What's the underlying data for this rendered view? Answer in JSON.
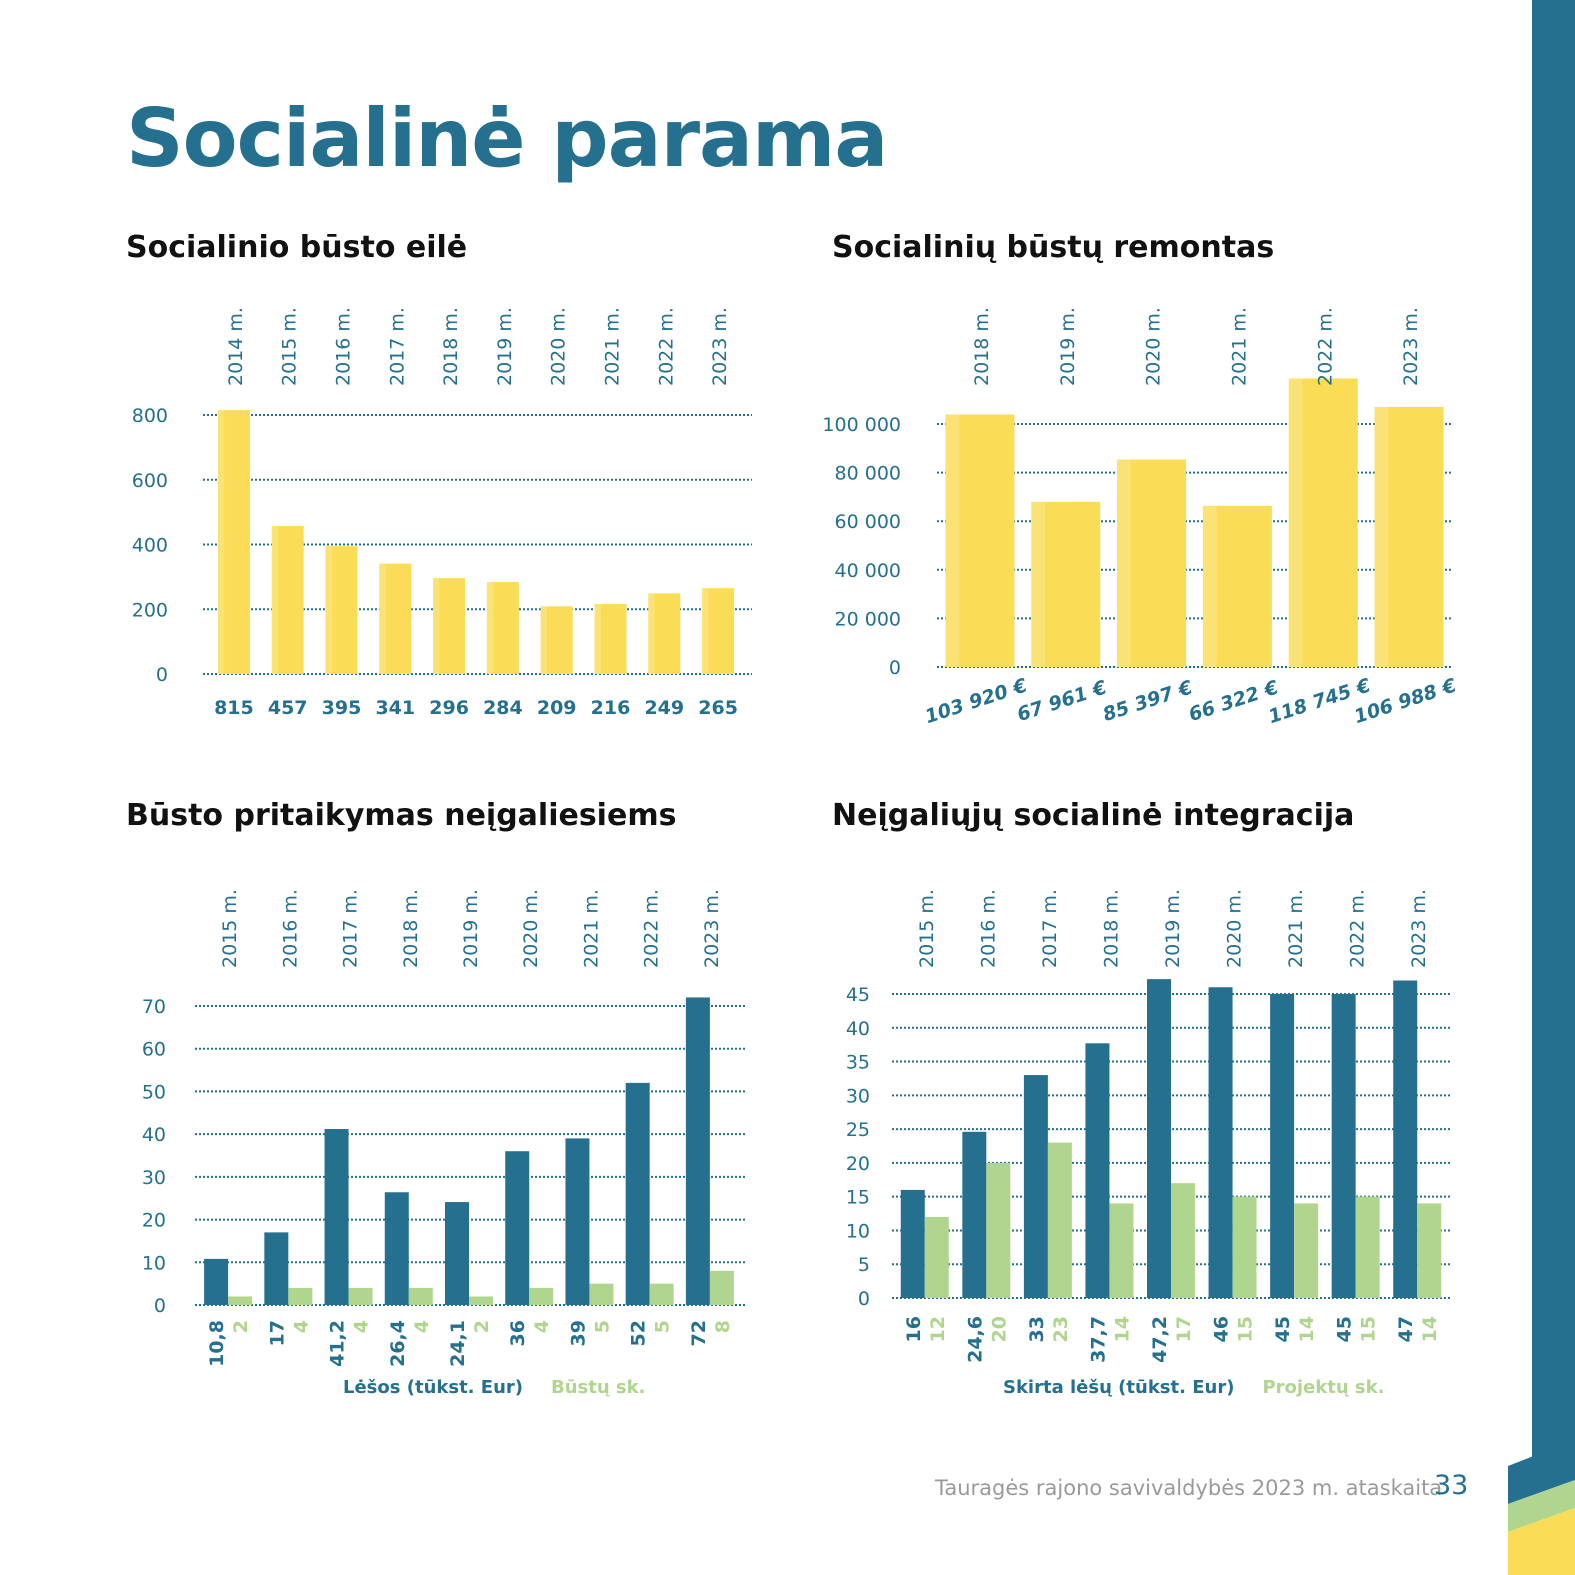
{
  "page": {
    "title": "Socialinė parama",
    "footer": "Tauragės rajono savivaldybės 2023 m. ataskaita",
    "page_number": "33"
  },
  "colors": {
    "blue": "#25708f",
    "yellow": "#fbdc56",
    "green": "#b0d58e",
    "grid": "#25708f"
  },
  "chart_data": [
    {
      "id": "queue",
      "type": "bar",
      "title": "Socialinio būsto eilė",
      "categories": [
        "2014 m.",
        "2015 m.",
        "2016 m.",
        "2017 m.",
        "2018 m.",
        "2019 m.",
        "2020 m.",
        "2021 m.",
        "2022 m.",
        "2023 m."
      ],
      "values": [
        815,
        457,
        395,
        341,
        296,
        284,
        209,
        216,
        249,
        265
      ],
      "value_labels": [
        "815",
        "457",
        "395",
        "341",
        "296",
        "284",
        "209",
        "216",
        "249",
        "265"
      ],
      "yticks": [
        "0",
        "200",
        "400",
        "600",
        "800"
      ],
      "ylim": [
        0,
        800
      ],
      "grid": true
    },
    {
      "id": "repair",
      "type": "bar",
      "title": "Socialinių būstų remontas",
      "categories": [
        "2018 m.",
        "2019 m.",
        "2020 m.",
        "2021 m.",
        "2022 m.",
        "2023 m."
      ],
      "values": [
        103920,
        67961,
        85397,
        66322,
        118745,
        106988
      ],
      "value_labels": [
        "103 920 €",
        "67 961 €",
        "85 397 €",
        "66 322 €",
        "118 745 €",
        "106 988 €"
      ],
      "yticks": [
        "0",
        "20 000",
        "40 000",
        "60 000",
        "80 000",
        "100 000"
      ],
      "ylim": [
        0,
        100000
      ],
      "grid": true
    },
    {
      "id": "adaptation",
      "type": "bar",
      "title": "Būsto pritaikymas neįgaliesiems",
      "categories": [
        "2015 m.",
        "2016 m.",
        "2017 m.",
        "2018 m.",
        "2019 m.",
        "2020 m.",
        "2021 m.",
        "2022 m.",
        "2023 m."
      ],
      "series": [
        {
          "name": "Lėšos (tūkst. Eur)",
          "values": [
            10.8,
            17,
            41.2,
            26.4,
            24.1,
            36,
            39,
            52,
            72
          ],
          "labels": [
            "10,8",
            "17",
            "41,2",
            "26,4",
            "24,1",
            "36",
            "39",
            "52",
            "72"
          ]
        },
        {
          "name": "Būstų sk.",
          "values": [
            2,
            4,
            4,
            4,
            2,
            4,
            5,
            5,
            8
          ],
          "labels": [
            "2",
            "4",
            "4",
            "4",
            "2",
            "4",
            "5",
            "5",
            "8"
          ]
        }
      ],
      "yticks": [
        "0",
        "10",
        "20",
        "30",
        "40",
        "50",
        "60",
        "70"
      ],
      "ylim": [
        0,
        70
      ],
      "grid": true,
      "legend": "bottom-center"
    },
    {
      "id": "integration",
      "type": "bar",
      "title": "Neįgaliųjų socialinė integracija",
      "categories": [
        "2015 m.",
        "2016 m.",
        "2017 m.",
        "2018 m.",
        "2019 m.",
        "2020 m.",
        "2021 m.",
        "2022 m.",
        "2023 m."
      ],
      "series": [
        {
          "name": "Skirta lėšų (tūkst. Eur)",
          "values": [
            16,
            24.6,
            33,
            37.7,
            47.2,
            46,
            45,
            45,
            47
          ],
          "labels": [
            "16",
            "24,6",
            "33",
            "37,7",
            "47,2",
            "46",
            "45",
            "45",
            "47"
          ]
        },
        {
          "name": "Projektų sk.",
          "values": [
            12,
            20,
            23,
            14,
            17,
            15,
            14,
            15,
            14
          ],
          "labels": [
            "12",
            "20",
            "23",
            "14",
            "17",
            "15",
            "14",
            "15",
            "14"
          ]
        }
      ],
      "yticks": [
        "0",
        "5",
        "10",
        "15",
        "20",
        "25",
        "30",
        "35",
        "40",
        "45"
      ],
      "ylim": [
        0,
        45
      ],
      "grid": true,
      "legend": "bottom-center"
    }
  ]
}
